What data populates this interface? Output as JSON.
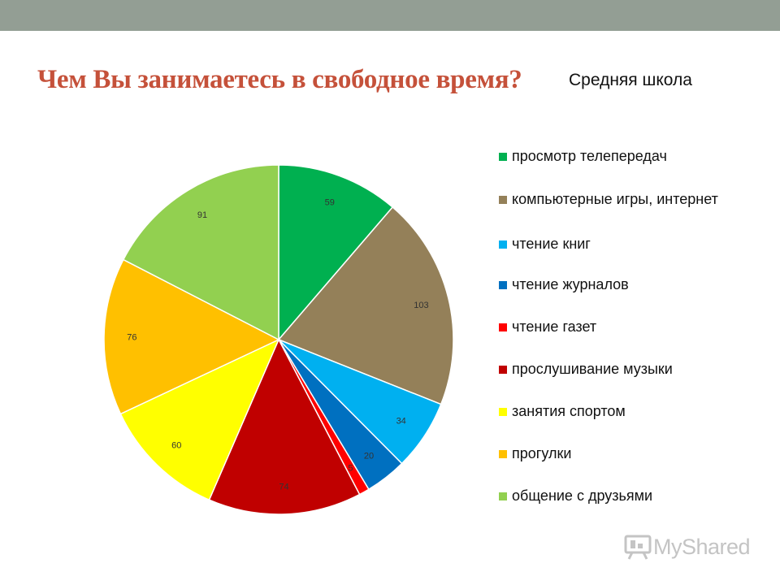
{
  "slide": {
    "title": "Чем Вы занимаетесь в свободное время?",
    "subtitle": "Средняя школа",
    "watermark": "MyShared"
  },
  "colors": {
    "top_bar": "#939e94",
    "title": "#c5513a"
  },
  "chart_data": {
    "type": "pie",
    "title": "Средняя школа",
    "legend_position": "right",
    "slices": [
      {
        "label": "просмотр телепередач",
        "value": 59,
        "color": "#00b050"
      },
      {
        "label": "компьютерные игры, интернет",
        "value": 103,
        "color": "#948059"
      },
      {
        "label": "чтение книг",
        "value": 34,
        "color": "#00b0f0"
      },
      {
        "label": "чтение журналов",
        "value": 20,
        "color": "#0070c0"
      },
      {
        "label": "чтение газет",
        "value": 5,
        "color": "#ff0000"
      },
      {
        "label": "прослушивание музыки",
        "value": 74,
        "color": "#c00000"
      },
      {
        "label": "занятия спортом",
        "value": 60,
        "color": "#ffff00"
      },
      {
        "label": "прогулки",
        "value": 76,
        "color": "#ffc000"
      },
      {
        "label": "общение с друзьями",
        "value": 91,
        "color": "#92d050"
      }
    ]
  }
}
